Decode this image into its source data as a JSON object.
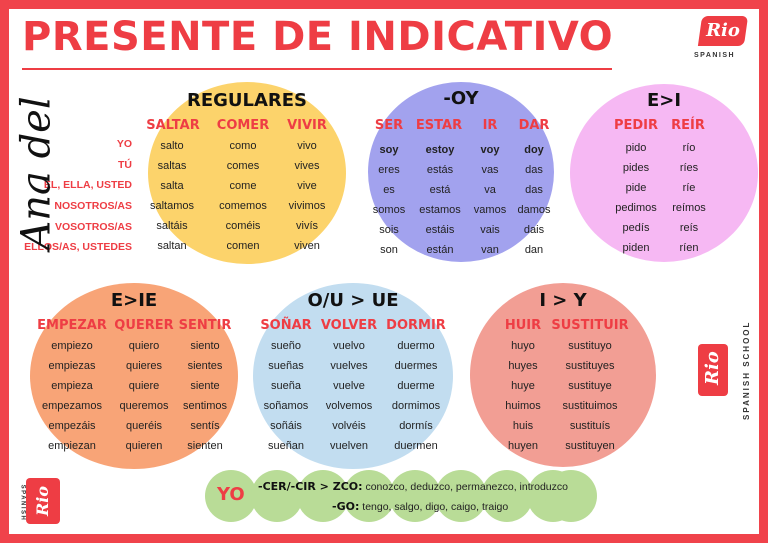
{
  "title": "PRESENTE DE INDICATIVO",
  "logo": {
    "text": "Rio",
    "sub": "SPANISH",
    "script": "Ana del",
    "school": "SPANISH SCHOOL"
  },
  "pronouns": [
    "YO",
    "TÚ",
    "ÉL, ELLA, USTED",
    "NOSOTROS/AS",
    "VOSOTROS/AS",
    "ELLOS/AS, USTEDES"
  ],
  "regulares": {
    "heading": "REGULARES",
    "verbs": [
      "SALTAR",
      "COMER",
      "VIVIR"
    ],
    "cols": [
      [
        "salto",
        "saltas",
        "salta",
        "saltamos",
        "saltáis",
        "saltan"
      ],
      [
        "como",
        "comes",
        "come",
        "comemos",
        "coméis",
        "comen"
      ],
      [
        "vivo",
        "vives",
        "vive",
        "vivimos",
        "vivís",
        "viven"
      ]
    ]
  },
  "oy": {
    "heading": "-OY",
    "verbs": [
      "SER",
      "ESTAR",
      "IR",
      "DAR"
    ],
    "cols": [
      [
        "soy",
        "eres",
        "es",
        "somos",
        "sois",
        "son"
      ],
      [
        "estoy",
        "estás",
        "está",
        "estamos",
        "estáis",
        "están"
      ],
      [
        "voy",
        "vas",
        "va",
        "vamos",
        "vais",
        "van"
      ],
      [
        "doy",
        "das",
        "das",
        "damos",
        "dais",
        "dan"
      ]
    ]
  },
  "ei": {
    "heading": "E>I",
    "verbs": [
      "PEDIR",
      "REÍR"
    ],
    "cols": [
      [
        "pido",
        "pides",
        "pide",
        "pedimos",
        "pedís",
        "piden"
      ],
      [
        "río",
        "ríes",
        "ríe",
        "reímos",
        "reís",
        "ríen"
      ]
    ]
  },
  "eie": {
    "heading": "E>IE",
    "verbs": [
      "EMPEZAR",
      "QUERER",
      "SENTIR"
    ],
    "cols": [
      [
        "empiezo",
        "empiezas",
        "empieza",
        "empezamos",
        "empezáis",
        "empiezan"
      ],
      [
        "quiero",
        "quieres",
        "quiere",
        "queremos",
        "queréis",
        "quieren"
      ],
      [
        "siento",
        "sientes",
        "siente",
        "sentimos",
        "sentís",
        "sienten"
      ]
    ]
  },
  "oue": {
    "heading": "O/U > UE",
    "verbs": [
      "SOÑAR",
      "VOLVER",
      "DORMIR"
    ],
    "cols": [
      [
        "sueño",
        "sueñas",
        "sueña",
        "soñamos",
        "soñáis",
        "sueñan"
      ],
      [
        "vuelvo",
        "vuelves",
        "vuelve",
        "volvemos",
        "volvéis",
        "vuelven"
      ],
      [
        "duermo",
        "duermes",
        "duerme",
        "dormimos",
        "dormís",
        "duermen"
      ]
    ]
  },
  "iy": {
    "heading": "I > Y",
    "verbs": [
      "HUIR",
      "SUSTITUIR"
    ],
    "cols": [
      [
        "huyo",
        "huyes",
        "huye",
        "huimos",
        "huis",
        "huyen"
      ],
      [
        "sustituyo",
        "sustituyes",
        "sustituye",
        "sustituimos",
        "sustituís",
        "sustituyen"
      ]
    ]
  },
  "yo": {
    "label": "YO",
    "rule1_label": "-CER/-CIR > ZCO:",
    "rule1_text": "conozco, deduzco, permanezco, introduzco",
    "rule2_label": "-GO:",
    "rule2_text": "tengo, salgo, digo, caigo, traigo"
  },
  "colors": {
    "red": "#ee3d44",
    "yellow": "#fcd36b",
    "purple": "#a2a2ee",
    "pink": "#f6b8f3",
    "orange": "#f8a477",
    "blue": "#c2ddf0",
    "salmon": "#f29e94",
    "green": "#b9dc97"
  }
}
